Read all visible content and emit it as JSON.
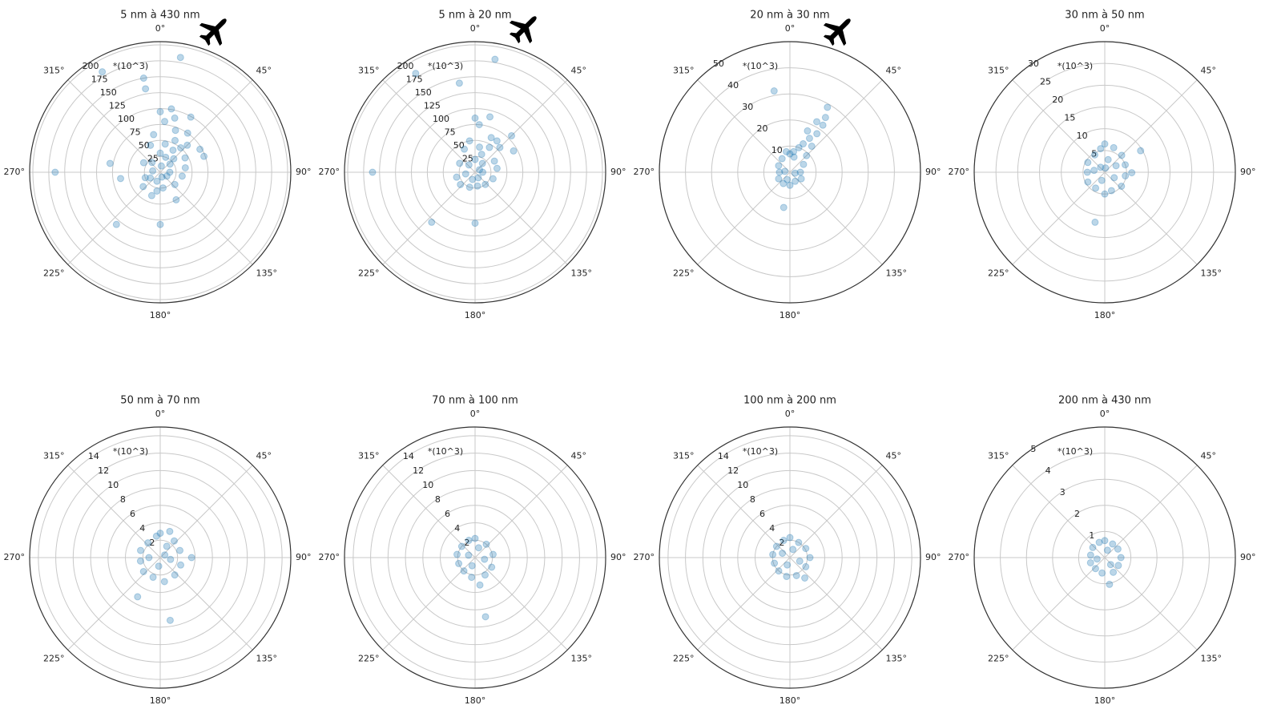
{
  "chart_data": [
    {
      "type": "polar",
      "title": "5 nm à 430 nm",
      "annotation": "*(10^3)",
      "color": "#1f77b4",
      "grid": true,
      "rlim": [
        0,
        205
      ],
      "rticks": [
        25,
        50,
        75,
        100,
        125,
        150,
        175,
        200
      ],
      "thetaticks": [
        {
          "value": 0,
          "label": "0°"
        },
        {
          "value": 45,
          "label": "45°"
        },
        {
          "value": 90,
          "label": "90°"
        },
        {
          "value": 135,
          "label": "135°"
        },
        {
          "value": 180,
          "label": "180°"
        },
        {
          "value": 225,
          "label": "225°"
        },
        {
          "value": 270,
          "label": "270°"
        },
        {
          "value": 315,
          "label": "315°"
        }
      ],
      "x": [
        10,
        330,
        270,
        220,
        180,
        350,
        350,
        70,
        60,
        29,
        10,
        280,
        261,
        150,
        200,
        15,
        5,
        0,
        20,
        35,
        45,
        40,
        25,
        350,
        340,
        300,
        250,
        230,
        190,
        170,
        130,
        100,
        80,
        60,
        30,
        10,
        0,
        20,
        50,
        90,
        120,
        200,
        240,
        320,
        280,
        160,
        10,
        45
      ],
      "values": [
        183,
        182,
        165,
        107,
        82,
        150,
        133,
        73,
        72,
        99,
        101,
        80,
        63,
        50,
        39,
        88,
        80,
        95,
        70,
        75,
        60,
        50,
        55,
        60,
        45,
        30,
        25,
        35,
        30,
        25,
        30,
        35,
        40,
        45,
        40,
        45,
        30,
        25,
        20,
        15,
        12,
        15,
        18,
        20,
        12,
        8,
        10,
        30
      ]
    },
    {
      "type": "polar",
      "title": "5 nm à 20 nm",
      "annotation": "*(10^3)",
      "color": "#1f77b4",
      "grid": true,
      "rlim": [
        0,
        205
      ],
      "rticks": [
        25,
        50,
        75,
        100,
        125,
        150,
        175,
        200
      ],
      "thetaticks": [
        {
          "value": 0,
          "label": "0°"
        },
        {
          "value": 45,
          "label": "45°"
        },
        {
          "value": 90,
          "label": "90°"
        },
        {
          "value": 135,
          "label": "135°"
        },
        {
          "value": 180,
          "label": "180°"
        },
        {
          "value": 225,
          "label": "225°"
        },
        {
          "value": 270,
          "label": "270°"
        },
        {
          "value": 315,
          "label": "315°"
        }
      ],
      "x": [
        10,
        329,
        270,
        221,
        180,
        350,
        61,
        45,
        35,
        15,
        5,
        0,
        25,
        45,
        30,
        10,
        350,
        335,
        300,
        255,
        230,
        200,
        170,
        140,
        110,
        80,
        60,
        20,
        0,
        40,
        90,
        200,
        260,
        320,
        150,
        60
      ],
      "values": [
        180,
        181,
        161,
        104,
        80,
        142,
        69,
        81,
        60,
        90,
        75,
        85,
        60,
        55,
        45,
        40,
        50,
        40,
        28,
        30,
        30,
        25,
        22,
        25,
        30,
        35,
        35,
        30,
        20,
        18,
        12,
        12,
        15,
        15,
        10,
        8
      ]
    },
    {
      "type": "polar",
      "title": "20 nm à 30 nm",
      "annotation": "*(10^3)",
      "color": "#1f77b4",
      "grid": true,
      "rlim": [
        0,
        50
      ],
      "rticks": [
        10,
        20,
        30,
        40,
        50
      ],
      "thetaticks": [
        {
          "value": 0,
          "label": "0°"
        },
        {
          "value": 45,
          "label": "45°"
        },
        {
          "value": 90,
          "label": "90°"
        },
        {
          "value": 135,
          "label": "135°"
        },
        {
          "value": 180,
          "label": "180°"
        },
        {
          "value": 225,
          "label": "225°"
        },
        {
          "value": 270,
          "label": "270°"
        },
        {
          "value": 315,
          "label": "315°"
        }
      ],
      "x": [
        349,
        30,
        190,
        28,
        23,
        35,
        30,
        25,
        40,
        20,
        45,
        10,
        0,
        350,
        330,
        300,
        270,
        240,
        210,
        180,
        150,
        120,
        90,
        60,
        35,
        33,
        15,
        200,
        280,
        100
      ],
      "values": [
        31.7,
        28.7,
        13.7,
        21.9,
        17.2,
        18,
        15,
        12,
        13,
        10,
        9,
        8,
        7,
        8,
        6,
        5,
        4,
        5,
        5,
        5,
        4,
        5,
        4,
        6,
        22,
        25,
        6,
        3,
        2,
        2
      ]
    },
    {
      "type": "polar",
      "title": "30 nm à 50 nm",
      "annotation": "*(10^3)",
      "color": "#1f77b4",
      "grid": true,
      "rlim": [
        0,
        30
      ],
      "rticks": [
        5,
        10,
        15,
        20,
        25,
        30
      ],
      "thetaticks": [
        {
          "value": 0,
          "label": "0°"
        },
        {
          "value": 45,
          "label": "45°"
        },
        {
          "value": 90,
          "label": "90°"
        },
        {
          "value": 135,
          "label": "135°"
        },
        {
          "value": 180,
          "label": "180°"
        },
        {
          "value": 225,
          "label": "225°"
        },
        {
          "value": 270,
          "label": "270°"
        },
        {
          "value": 315,
          "label": "315°"
        }
      ],
      "x": [
        59,
        191,
        91,
        0,
        20,
        45,
        70,
        100,
        130,
        160,
        180,
        210,
        240,
        270,
        300,
        330,
        350,
        15,
        60,
        120,
        200,
        280,
        320,
        10
      ],
      "values": [
        9.6,
        11.7,
        6.2,
        6.5,
        6,
        5.5,
        5,
        4.8,
        5,
        4.5,
        5,
        4.2,
        4.5,
        4,
        4.5,
        4.6,
        5.5,
        3,
        3,
        2.5,
        2,
        2.5,
        1.5,
        1
      ]
    },
    {
      "type": "polar",
      "title": "50 nm à 70 nm",
      "annotation": "*(10^3)",
      "color": "#1f77b4",
      "grid": true,
      "rlim": [
        0,
        15
      ],
      "rticks": [
        2,
        4,
        6,
        8,
        10,
        12,
        14
      ],
      "thetaticks": [
        {
          "value": 0,
          "label": "0°"
        },
        {
          "value": 45,
          "label": "45°"
        },
        {
          "value": 90,
          "label": "90°"
        },
        {
          "value": 135,
          "label": "135°"
        },
        {
          "value": 180,
          "label": "180°"
        },
        {
          "value": 225,
          "label": "225°"
        },
        {
          "value": 270,
          "label": "270°"
        },
        {
          "value": 315,
          "label": "315°"
        }
      ],
      "x": [
        171,
        210,
        90,
        20,
        0,
        40,
        70,
        110,
        140,
        170,
        200,
        230,
        260,
        290,
        320,
        350,
        30,
        100,
        190,
        270,
        60
      ],
      "values": [
        7.3,
        5.2,
        3.6,
        3.2,
        2.8,
        2.5,
        2.4,
        2.5,
        2.6,
        2.8,
        2.4,
        2.5,
        2.3,
        2.4,
        2.2,
        2.5,
        1.5,
        1.2,
        1,
        1.3,
        0.6
      ]
    },
    {
      "type": "polar",
      "title": "70 nm à 100 nm",
      "annotation": "*(10^3)",
      "color": "#1f77b4",
      "grid": true,
      "rlim": [
        0,
        15
      ],
      "rticks": [
        2,
        4,
        6,
        8,
        10,
        12,
        14
      ],
      "thetaticks": [
        {
          "value": 0,
          "label": "0°"
        },
        {
          "value": 45,
          "label": "45°"
        },
        {
          "value": 90,
          "label": "90°"
        },
        {
          "value": 135,
          "label": "135°"
        },
        {
          "value": 180,
          "label": "180°"
        },
        {
          "value": 225,
          "label": "225°"
        },
        {
          "value": 270,
          "label": "270°"
        },
        {
          "value": 315,
          "label": "315°"
        }
      ],
      "x": [
        170,
        170,
        0,
        40,
        80,
        120,
        150,
        190,
        220,
        250,
        280,
        310,
        340,
        20,
        100,
        200,
        290
      ],
      "values": [
        6.9,
        3.2,
        2.2,
        2,
        2.1,
        2.2,
        2.3,
        2.3,
        2,
        2,
        2.1,
        2,
        2.1,
        1.2,
        1.1,
        1,
        0.8
      ]
    },
    {
      "type": "polar",
      "title": "100 nm à 200 nm",
      "annotation": "*(10^3)",
      "color": "#1f77b4",
      "grid": true,
      "rlim": [
        0,
        15
      ],
      "rticks": [
        2,
        4,
        6,
        8,
        10,
        12,
        14
      ],
      "thetaticks": [
        {
          "value": 0,
          "label": "0°"
        },
        {
          "value": 45,
          "label": "45°"
        },
        {
          "value": 90,
          "label": "90°"
        },
        {
          "value": 135,
          "label": "135°"
        },
        {
          "value": 180,
          "label": "180°"
        },
        {
          "value": 225,
          "label": "225°"
        },
        {
          "value": 270,
          "label": "270°"
        },
        {
          "value": 315,
          "label": "315°"
        }
      ],
      "x": [
        144,
        0,
        30,
        60,
        90,
        120,
        160,
        190,
        220,
        250,
        280,
        310,
        340,
        20,
        110,
        200,
        300
      ],
      "values": [
        2.9,
        2.3,
        2,
        2.1,
        2.3,
        2.1,
        2.2,
        2.2,
        2,
        1.9,
        2,
        2,
        2.1,
        1,
        1.2,
        0.9,
        1
      ]
    },
    {
      "type": "polar",
      "title": "200 nm à 430 nm",
      "annotation": "*(10^3)",
      "color": "#1f77b4",
      "grid": true,
      "rlim": [
        0,
        5
      ],
      "rticks": [
        1,
        2,
        3,
        4,
        5
      ],
      "thetaticks": [
        {
          "value": 0,
          "label": "0°"
        },
        {
          "value": 45,
          "label": "45°"
        },
        {
          "value": 90,
          "label": "90°"
        },
        {
          "value": 135,
          "label": "135°"
        },
        {
          "value": 180,
          "label": "180°"
        },
        {
          "value": 225,
          "label": "225°"
        },
        {
          "value": 270,
          "label": "270°"
        },
        {
          "value": 315,
          "label": "315°"
        }
      ],
      "x": [
        170,
        57,
        0,
        30,
        90,
        120,
        150,
        190,
        220,
        250,
        280,
        310,
        340,
        20,
        140,
        260
      ],
      "values": [
        1.04,
        0.6,
        0.65,
        0.6,
        0.62,
        0.6,
        0.65,
        0.6,
        0.55,
        0.58,
        0.55,
        0.6,
        0.62,
        0.3,
        0.35,
        0.3
      ]
    }
  ]
}
